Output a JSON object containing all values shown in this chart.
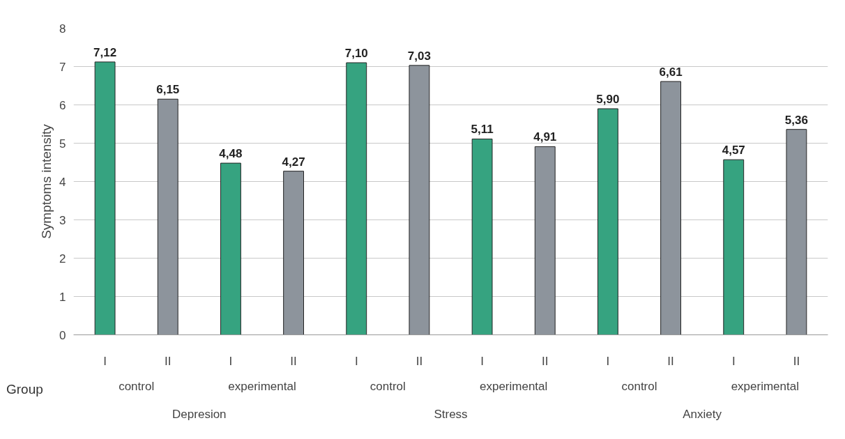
{
  "chart_data": {
    "type": "bar",
    "ylabel": "Symptoms intensity",
    "categories": [
      "I",
      "II",
      "I",
      "II",
      "I",
      "II",
      "I",
      "II",
      "I",
      "II",
      "I",
      "II"
    ],
    "values": [
      7.12,
      6.15,
      4.48,
      4.27,
      7.1,
      7.03,
      5.11,
      4.91,
      5.9,
      6.61,
      4.57,
      5.36
    ],
    "colors": [
      "#36a380",
      "#8d949c",
      "#36a380",
      "#8d949c",
      "#36a380",
      "#8d949c",
      "#36a380",
      "#8d949c",
      "#36a380",
      "#8d949c",
      "#36a380",
      "#8d949c"
    ],
    "value_labels": [
      "7,12",
      "6,15",
      "4,48",
      "4,27",
      "7,10",
      "7,03",
      "5,11",
      "4,91",
      "5,90",
      "6,61",
      "4,57",
      "5,36"
    ],
    "annotations": [
      "Group",
      "control",
      "experimental",
      "control",
      "experimental",
      "control",
      "experimental",
      "Depresion",
      "Stress",
      "Anxiety"
    ],
    "ylim": [
      0,
      8
    ],
    "yticks": [
      0,
      1,
      2,
      3,
      4,
      5,
      6,
      7,
      8
    ],
    "grid": "y"
  }
}
